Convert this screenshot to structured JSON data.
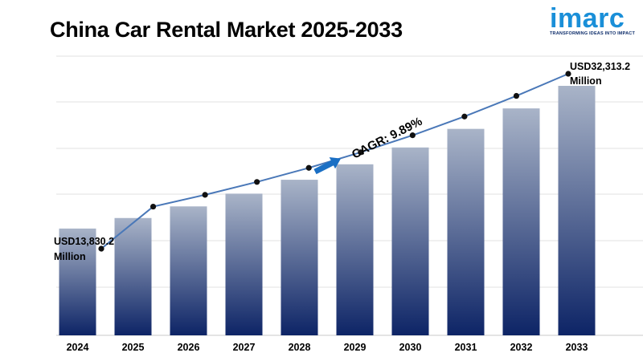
{
  "title": "China Car Rental Market 2025-2033",
  "logo": {
    "word": "imarc",
    "tagline": "TRANSFORMING IDEAS INTO IMPACT",
    "color": "#1a8fd8"
  },
  "chart_data": {
    "type": "bar",
    "categories": [
      "2024",
      "2025",
      "2026",
      "2027",
      "2028",
      "2029",
      "2030",
      "2031",
      "2032",
      "2033"
    ],
    "values": [
      13830.2,
      15195,
      16700,
      18350,
      20150,
      22150,
      24330,
      26740,
      29390,
      32313.2
    ],
    "line_values": [
      13830.2,
      15195,
      16700,
      18350,
      20150,
      22150,
      24330,
      26740,
      29390,
      32313.2
    ],
    "ylim": [
      0,
      34000
    ],
    "grid": true,
    "bar_gradient": [
      "#a9b4c8",
      "#0d2466"
    ],
    "line_color": "#4a78b8",
    "annotations": {
      "start_line1": "USD13,830.2",
      "start_line2": "Million",
      "end_line1": "USD32,313.2",
      "end_line2": "Million",
      "cagr": "CAGR: 9.89%"
    },
    "arrow_color": "#1a6fc4"
  }
}
